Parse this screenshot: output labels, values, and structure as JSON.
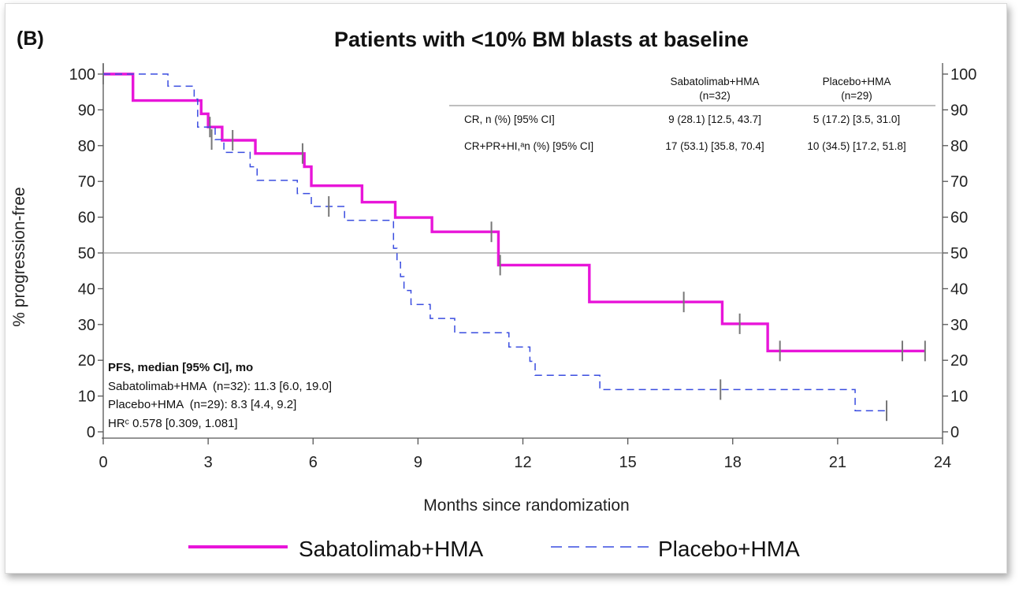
{
  "panel_label": "(B)",
  "chart_data": {
    "type": "line",
    "chart_kind": "kaplan-meier",
    "title": "Patients with <10% BM blasts at baseline",
    "xlabel": "Months since randomization",
    "ylabel": "% progression-free",
    "xlim": [
      0,
      24
    ],
    "ylim": [
      0,
      100
    ],
    "x_ticks": [
      "0",
      "3",
      "6",
      "9",
      "12",
      "15",
      "18",
      "21",
      "24"
    ],
    "y_ticks": [
      "0",
      "10",
      "20",
      "30",
      "40",
      "50",
      "60",
      "70",
      "80",
      "90",
      "100"
    ],
    "reference_line_y": 50,
    "grid": false,
    "legend_position": "bottom",
    "series": [
      {
        "name": "Sabatolimab+HMA",
        "color": "#e815d9",
        "style": "solid",
        "steps": [
          [
            0,
            100
          ],
          [
            0.85,
            92.6
          ],
          [
            2.8,
            88.9
          ],
          [
            3.0,
            85.2
          ],
          [
            3.4,
            81.5
          ],
          [
            4.35,
            77.8
          ],
          [
            5.75,
            74.1
          ],
          [
            5.95,
            68.8
          ],
          [
            7.4,
            64.2
          ],
          [
            8.35,
            59.9
          ],
          [
            9.4,
            55.9
          ],
          [
            11.3,
            46.6
          ],
          [
            13.9,
            36.3
          ],
          [
            17.7,
            30.2
          ],
          [
            19.0,
            22.6
          ],
          [
            23.5,
            22.6
          ]
        ],
        "censored": [
          [
            0,
            100
          ],
          [
            3.05,
            85.2
          ],
          [
            3.7,
            81.5
          ],
          [
            5.7,
            77.8
          ],
          [
            11.1,
            55.9
          ],
          [
            11.35,
            46.6
          ],
          [
            16.6,
            36.3
          ],
          [
            18.2,
            30.2
          ],
          [
            19.35,
            22.6
          ],
          [
            22.85,
            22.6
          ],
          [
            23.5,
            22.6
          ]
        ]
      },
      {
        "name": "Placebo+HMA",
        "color": "#3a4de0",
        "style": "dashed",
        "steps": [
          [
            0,
            100
          ],
          [
            1.85,
            96.6
          ],
          [
            2.6,
            93.0
          ],
          [
            2.7,
            85.2
          ],
          [
            3.2,
            81.7
          ],
          [
            3.45,
            78.1
          ],
          [
            4.2,
            74.1
          ],
          [
            4.4,
            70.3
          ],
          [
            5.55,
            66.6
          ],
          [
            5.95,
            63.0
          ],
          [
            6.9,
            59.1
          ],
          [
            8.3,
            51.3
          ],
          [
            8.4,
            47.4
          ],
          [
            8.5,
            43.4
          ],
          [
            8.6,
            39.5
          ],
          [
            8.8,
            35.6
          ],
          [
            9.35,
            31.7
          ],
          [
            10.05,
            27.7
          ],
          [
            11.6,
            23.7
          ],
          [
            12.2,
            19.7
          ],
          [
            12.35,
            15.8
          ],
          [
            14.2,
            11.8
          ],
          [
            21.5,
            5.9
          ],
          [
            22.4,
            5.9
          ]
        ],
        "censored": [
          [
            3.1,
            81.7
          ],
          [
            6.45,
            63.0
          ],
          [
            17.65,
            11.8
          ],
          [
            22.4,
            5.9
          ]
        ]
      }
    ],
    "response_table": {
      "columns": [
        "Sabatolimab+HMA",
        "Placebo+HMA"
      ],
      "column_ns": [
        "(n=32)",
        "(n=29)"
      ],
      "rows": [
        {
          "label": "CR, n (%) [95% CI]",
          "values": [
            "9 (28.1) [12.5, 43.7]",
            "5 (17.2) [3.5, 31.0]"
          ]
        },
        {
          "label": "CR+PR+HI,ᵃn (%) [95% CI]",
          "values": [
            "17 (53.1) [35.8, 70.4]",
            "10 (34.5) [17.2, 51.8]"
          ]
        }
      ]
    },
    "annotation": {
      "heading": "PFS, median [95% CI], mo",
      "lines": [
        "Sabatolimab+HMA  (n=32): 11.3 [6.0, 19.0]",
        "Placebo+HMA  (n=29): 8.3 [4.4, 9.2]",
        "HRᶜ 0.578 [0.309, 1.081]"
      ]
    },
    "legend": [
      {
        "label": "Sabatolimab+HMA",
        "color": "#e815d9",
        "style": "solid"
      },
      {
        "label": "Placebo+HMA",
        "color": "#3a4de0",
        "style": "dashed"
      }
    ]
  }
}
